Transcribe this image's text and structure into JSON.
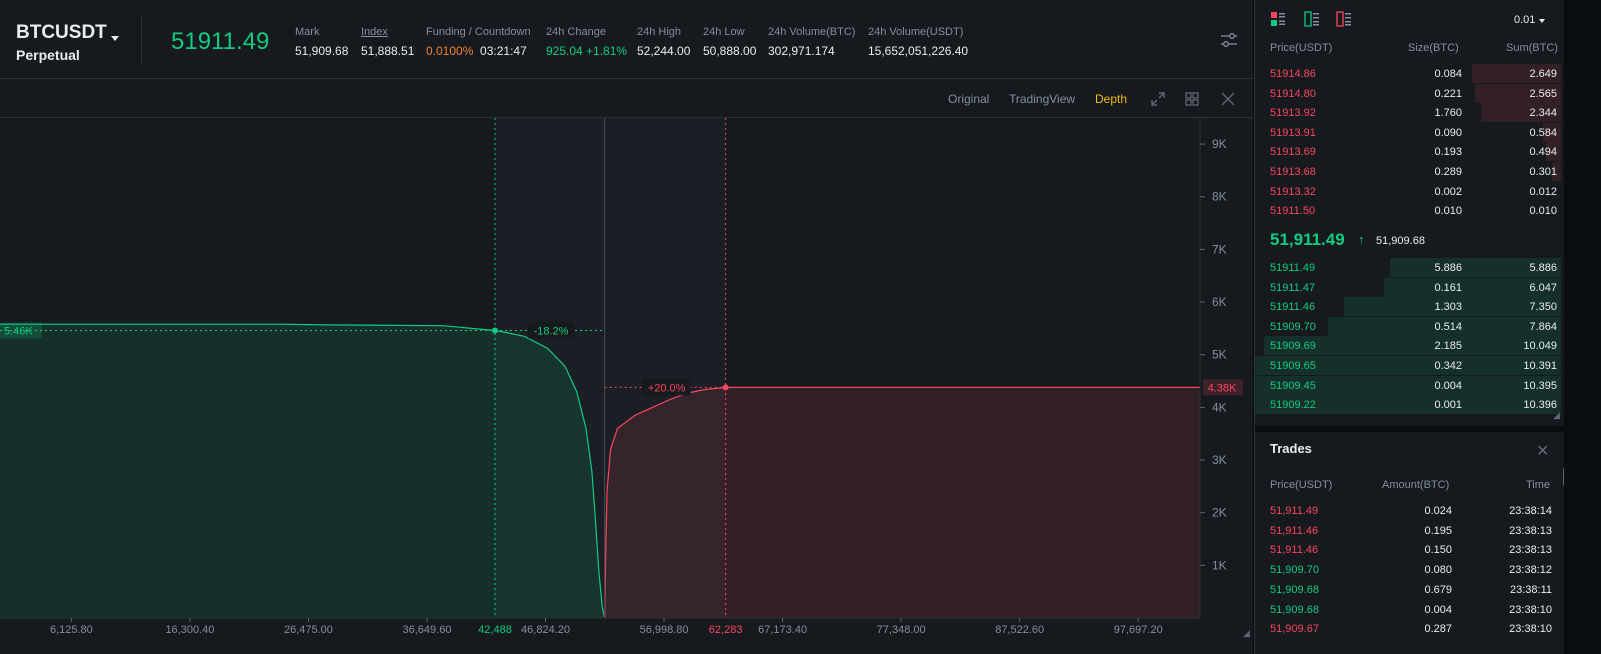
{
  "header": {
    "symbol": "BTCUSDT",
    "contract_type": "Perpetual",
    "last_price": "51911.49",
    "stats": [
      {
        "label": "Mark",
        "value": "51,909.68"
      },
      {
        "label": "Index",
        "value": "51,888.51"
      },
      {
        "label": "Funding / Countdown",
        "value_rate": "0.0100%",
        "value_countdown": "03:21:47"
      },
      {
        "label": "24h Change",
        "value": "925.04 +1.81%"
      },
      {
        "label": "24h High",
        "value": "52,244.00"
      },
      {
        "label": "24h Low",
        "value": "50,888.00"
      },
      {
        "label": "24h Volume(BTC)",
        "value": "302,971.174"
      },
      {
        "label": "24h Volume(USDT)",
        "value": "15,652,051,226.40"
      }
    ]
  },
  "toolbar": {
    "tabs": [
      "Original",
      "TradingView",
      "Depth"
    ],
    "active_tab": "Depth",
    "icons": [
      "expand-icon",
      "grid-layout-icon",
      "close-icon"
    ]
  },
  "chart_data": {
    "type": "area",
    "x_ticks": [
      "6,125.80",
      "16,300.40",
      "26,475.00",
      "36,649.60",
      "46,824.20",
      "56,998.80",
      "67,173.40",
      "77,348.00",
      "87,522.60",
      "97,697.20"
    ],
    "y_ticks": [
      "9K",
      "8K",
      "7K",
      "6K",
      "5K",
      "4K",
      "3K",
      "2K",
      "1K"
    ],
    "xlim": [
      0,
      103000
    ],
    "ylim": [
      0,
      9400
    ],
    "mid_price": 51900,
    "series": [
      {
        "name": "Bids",
        "color": "#0ecb81",
        "points": [
          [
            0,
            5580
          ],
          [
            24000,
            5580
          ],
          [
            28000,
            5565
          ],
          [
            38000,
            5550
          ],
          [
            42488,
            5460
          ],
          [
            43500,
            5420
          ],
          [
            45000,
            5350
          ],
          [
            47000,
            5120
          ],
          [
            48500,
            4780
          ],
          [
            49500,
            4300
          ],
          [
            50300,
            3600
          ],
          [
            50800,
            2800
          ],
          [
            51100,
            1900
          ],
          [
            51400,
            900
          ],
          [
            51700,
            200
          ],
          [
            51900,
            0
          ]
        ]
      },
      {
        "name": "Asks",
        "color": "#f6465d",
        "points": [
          [
            51900,
            0
          ],
          [
            52000,
            1300
          ],
          [
            52100,
            2400
          ],
          [
            52400,
            3200
          ],
          [
            53000,
            3600
          ],
          [
            54500,
            3850
          ],
          [
            56000,
            4000
          ],
          [
            57500,
            4150
          ],
          [
            59000,
            4270
          ],
          [
            60500,
            4340
          ],
          [
            62283,
            4380
          ],
          [
            103000,
            4380
          ]
        ]
      }
    ],
    "markers": [
      {
        "side": "bid",
        "x": 42488,
        "x_label": "42,488",
        "y_label": "5.46K",
        "pct_label": "-18.2%"
      },
      {
        "side": "ask",
        "x": 62283,
        "x_label": "62,283",
        "y_label": "4.38K",
        "pct_label": "+20.0%"
      }
    ]
  },
  "orderbook": {
    "precision": "0.01",
    "headers": {
      "price": "Price(USDT)",
      "size": "Size(BTC)",
      "sum": "Sum(BTC)"
    },
    "asks": [
      {
        "price": "51914.86",
        "size": "0.084",
        "sum": "2.649",
        "depth": 0.29
      },
      {
        "price": "51914.80",
        "size": "0.221",
        "sum": "2.565",
        "depth": 0.28
      },
      {
        "price": "51913.92",
        "size": "1.760",
        "sum": "2.344",
        "depth": 0.26
      },
      {
        "price": "51913.91",
        "size": "0.090",
        "sum": "0.584",
        "depth": 0.06
      },
      {
        "price": "51913.69",
        "size": "0.193",
        "sum": "0.494",
        "depth": 0.05
      },
      {
        "price": "51913.68",
        "size": "0.289",
        "sum": "0.301",
        "depth": 0.03
      },
      {
        "price": "51913.32",
        "size": "0.002",
        "sum": "0.012",
        "depth": 0.0
      },
      {
        "price": "51911.50",
        "size": "0.010",
        "sum": "0.010",
        "depth": 0.0
      }
    ],
    "last_price": "51,911.49",
    "mark_price": "51,909.68",
    "bids": [
      {
        "price": "51911.49",
        "size": "5.886",
        "sum": "5.886",
        "depth": 0.56
      },
      {
        "price": "51911.47",
        "size": "0.161",
        "sum": "6.047",
        "depth": 0.58
      },
      {
        "price": "51911.46",
        "size": "1.303",
        "sum": "7.350",
        "depth": 0.71
      },
      {
        "price": "51909.70",
        "size": "0.514",
        "sum": "7.864",
        "depth": 0.76
      },
      {
        "price": "51909.69",
        "size": "2.185",
        "sum": "10.049",
        "depth": 0.97
      },
      {
        "price": "51909.65",
        "size": "0.342",
        "sum": "10.391",
        "depth": 1.0
      },
      {
        "price": "51909.45",
        "size": "0.004",
        "sum": "10.395",
        "depth": 1.0
      },
      {
        "price": "51909.22",
        "size": "0.001",
        "sum": "10.396",
        "depth": 1.0
      }
    ]
  },
  "trades": {
    "title": "Trades",
    "headers": {
      "price": "Price(USDT)",
      "amount": "Amount(BTC)",
      "time": "Time"
    },
    "rows": [
      {
        "price": "51,911.49",
        "amount": "0.024",
        "time": "23:38:14",
        "side": "sell"
      },
      {
        "price": "51,911.46",
        "amount": "0.195",
        "time": "23:38:13",
        "side": "sell"
      },
      {
        "price": "51,911.46",
        "amount": "0.150",
        "time": "23:38:13",
        "side": "sell"
      },
      {
        "price": "51,909.70",
        "amount": "0.080",
        "time": "23:38:12",
        "side": "buy"
      },
      {
        "price": "51,909.68",
        "amount": "0.679",
        "time": "23:38:11",
        "side": "buy"
      },
      {
        "price": "51,909.68",
        "amount": "0.004",
        "time": "23:38:10",
        "side": "buy"
      },
      {
        "price": "51,909.67",
        "amount": "0.287",
        "time": "23:38:10",
        "side": "sell"
      }
    ]
  },
  "colors": {
    "up": "#0ecb81",
    "down": "#f6465d",
    "accent": "#f0b90b",
    "funding": "#f0812c"
  }
}
